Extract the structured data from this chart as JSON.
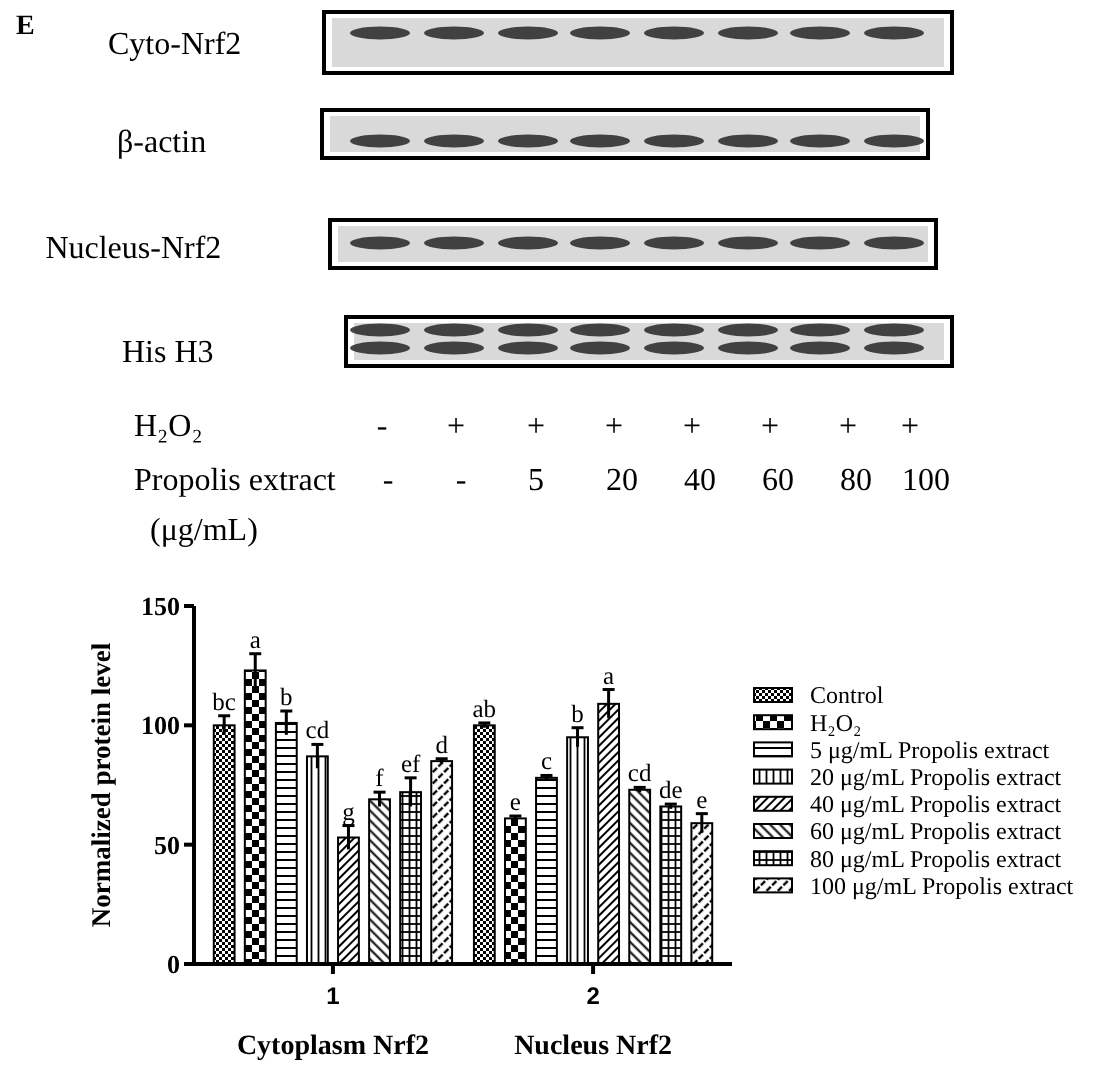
{
  "chart_data": {
    "type": "bar",
    "ylabel": "Normalized protein level",
    "categories": [
      "1",
      "2"
    ],
    "ylim": [
      0,
      150
    ],
    "yticks": [
      0,
      50,
      100,
      150
    ],
    "legend": "right",
    "series": [
      {
        "name": "Control",
        "color": "#000000",
        "values": [
          100,
          100
        ],
        "errors": [
          4,
          1
        ],
        "value_labels": [
          "bc",
          "ab"
        ]
      },
      {
        "name": "H₂O₂",
        "color": "#000000",
        "values": [
          123,
          61
        ],
        "errors": [
          7,
          1
        ],
        "value_labels": [
          "a",
          "e"
        ]
      },
      {
        "name": "5 μg/mL Propolis extract",
        "color": "#000000",
        "values": [
          101,
          78
        ],
        "errors": [
          5,
          1
        ],
        "value_labels": [
          "b",
          "c"
        ]
      },
      {
        "name": "20 μg/mL Propolis extract",
        "color": "#000000",
        "values": [
          87,
          95
        ],
        "errors": [
          5,
          4
        ],
        "value_labels": [
          "cd",
          "b"
        ]
      },
      {
        "name": "40 μg/mL Propolis extract",
        "color": "#000000",
        "values": [
          53,
          109
        ],
        "errors": [
          5,
          6
        ],
        "value_labels": [
          "g",
          "a"
        ]
      },
      {
        "name": "60 μg/mL Propolis extract",
        "color": "#000000",
        "values": [
          69,
          73
        ],
        "errors": [
          3,
          1
        ],
        "value_labels": [
          "f",
          "cd"
        ]
      },
      {
        "name": "80 μg/mL Propolis extract",
        "color": "#000000",
        "values": [
          72,
          66
        ],
        "errors": [
          6,
          1
        ],
        "value_labels": [
          "ef",
          "de"
        ]
      },
      {
        "name": "100 μg/mL Propolis extract",
        "color": "#000000",
        "values": [
          85,
          59
        ],
        "errors": [
          1,
          4
        ],
        "value_labels": [
          "d",
          "e"
        ]
      }
    ],
    "annotations": [
      "E",
      "Cyto-Nrf2",
      "β-actin",
      "Nucleus-Nrf2",
      "His H3",
      "H₂O₂",
      "-",
      "+",
      "+",
      "+",
      "+",
      "+",
      "+",
      "+",
      "Propolis extract",
      "-",
      "-",
      "5",
      "20",
      "40",
      "60",
      "80",
      "100",
      "(μg/mL)",
      "Cytoplasm Nrf2",
      "Nucleus Nrf2"
    ]
  }
}
